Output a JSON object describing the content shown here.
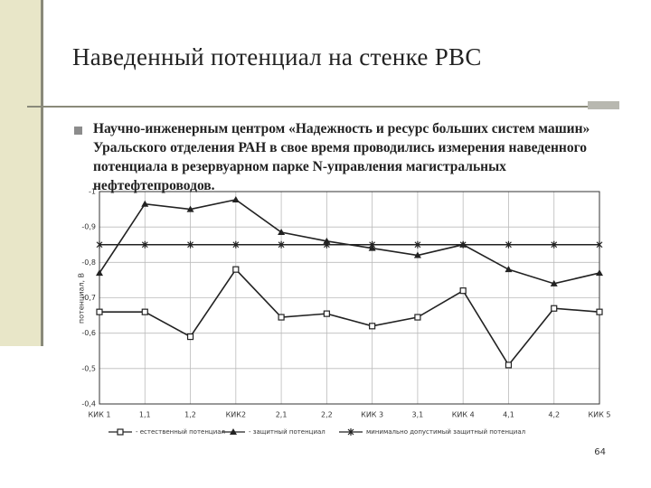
{
  "header": {
    "title": "Наведенный потенциал на стенке РВС"
  },
  "bullet": "Научно-инженерным центром «Надежность и ресурс больших систем машин» Уральского отделения РАН в свое время проводились измерения наведенного потенциала в резервуарном парке N-управления магистральных нефтефтепроводов.",
  "page_number": "64",
  "chart_data": {
    "type": "line",
    "y_label": "потенциал, В",
    "categories": [
      "КИК 1",
      "1,1",
      "1,2",
      "КИК2",
      "2,1",
      "2,2",
      "КИК 3",
      "3,1",
      "КИК 4",
      "4,1",
      "4,2",
      "КИК 5"
    ],
    "series": [
      {
        "name": "- естественный потенциал",
        "color": "#222222",
        "marker": "square",
        "values": [
          -0.66,
          -0.66,
          -0.59,
          -0.78,
          -0.645,
          -0.655,
          -0.62,
          -0.645,
          -0.72,
          -0.51,
          -0.67,
          -0.66
        ]
      },
      {
        "name": "- защитный потенциал",
        "color": "#222222",
        "marker": "triangle",
        "values": [
          -0.77,
          -0.965,
          -0.95,
          -0.977,
          -0.885,
          -0.86,
          -0.84,
          -0.82,
          -0.85,
          -0.78,
          -0.74,
          -0.77
        ]
      },
      {
        "name": "минимально допустимый защитный потенциал",
        "color": "#222222",
        "marker": "cross",
        "values": [
          -0.85,
          -0.85,
          -0.85,
          -0.85,
          -0.85,
          -0.85,
          -0.85,
          -0.85,
          -0.85,
          -0.85,
          -0.85,
          -0.85
        ]
      }
    ],
    "ylim": [
      -1,
      -0.4
    ],
    "y_inverted": true,
    "yticks": [
      -1,
      {
        "value": -0.9,
        "label": "-0,9"
      },
      {
        "value": -0.8,
        "label": "-0,8"
      },
      {
        "value": -0.7,
        "label": "-0,7"
      },
      {
        "value": -0.6,
        "label": "-0,6"
      },
      {
        "value": -0.5,
        "label": "-0,5"
      },
      {
        "value": -0.4,
        "label": "-0,4"
      }
    ],
    "grid": true
  }
}
